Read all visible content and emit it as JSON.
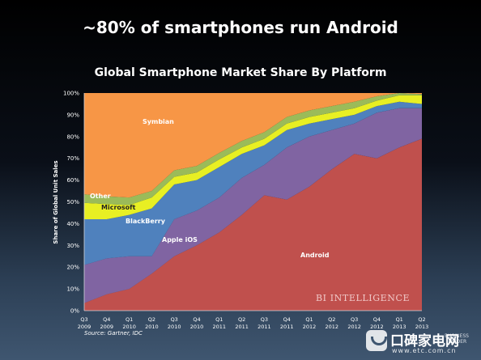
{
  "slide": {
    "title": "~80% of smartphones run Android",
    "source": "Source: Gartner, IDC",
    "watermark_bi": "BI INTELLIGENCE",
    "watermark_bi_small": "BUSINESS INSIDER",
    "watermark_site_name": "口碑家电网",
    "watermark_site_url": "www.etc.com.cn"
  },
  "chart_data": {
    "type": "area",
    "stacked": true,
    "title": "Global Smartphone Market Share By Platform",
    "xlabel": "",
    "ylabel": "Share of Global Unit Sales",
    "ylim": [
      0,
      100
    ],
    "y_ticks": [
      "0%",
      "10%",
      "20%",
      "30%",
      "40%",
      "50%",
      "60%",
      "70%",
      "80%",
      "90%",
      "100%"
    ],
    "categories": [
      "Q3 2009",
      "Q4 2009",
      "Q1 2010",
      "Q2 2010",
      "Q3 2010",
      "Q4 2010",
      "Q1 2011",
      "Q2 2011",
      "Q3 2011",
      "Q4 2011",
      "Q1 2012",
      "Q2 2012",
      "Q3 2012",
      "Q4 2012",
      "Q1 2013",
      "Q2 2013"
    ],
    "category_lines": [
      [
        "Q3",
        "2009"
      ],
      [
        "Q4",
        "2009"
      ],
      [
        "Q1",
        "2010"
      ],
      [
        "Q2",
        "2010"
      ],
      [
        "Q3",
        "2010"
      ],
      [
        "Q4",
        "2010"
      ],
      [
        "Q1",
        "2011"
      ],
      [
        "Q2",
        "2011"
      ],
      [
        "Q3",
        "2011"
      ],
      [
        "Q4",
        "2011"
      ],
      [
        "Q1",
        "2012"
      ],
      [
        "Q2",
        "2012"
      ],
      [
        "Q3",
        "2012"
      ],
      [
        "Q4",
        "2012"
      ],
      [
        "Q1",
        "2013"
      ],
      [
        "Q2",
        "2013"
      ]
    ],
    "series": [
      {
        "name": "Android",
        "color": "#c0504d",
        "values": [
          3.5,
          7.5,
          10,
          17,
          25,
          30,
          36,
          44,
          53,
          51,
          57,
          65,
          72,
          70,
          75,
          79
        ]
      },
      {
        "name": "Apple iOS",
        "color": "#8064a2",
        "values": [
          17.5,
          16.5,
          15,
          8,
          17,
          16,
          16,
          17,
          14,
          24,
          23,
          18,
          14,
          21,
          18,
          14
        ]
      },
      {
        "name": "BlackBerry",
        "color": "#4f81bd",
        "values": [
          21,
          18,
          19,
          22,
          16,
          14,
          14,
          11,
          9,
          8,
          6,
          5,
          4,
          3,
          3,
          2
        ]
      },
      {
        "name": "Microsoft",
        "color": "#e8ef23",
        "values": [
          7.5,
          7,
          4.5,
          5,
          3.5,
          3.5,
          3.5,
          3,
          3,
          3,
          3,
          3,
          3,
          2.5,
          3,
          4
        ]
      },
      {
        "name": "Other",
        "color": "#9bbb59",
        "values": [
          4,
          3.5,
          3.5,
          3,
          3,
          3,
          3,
          3,
          3,
          3,
          3,
          3,
          3,
          2,
          1,
          0.5
        ]
      },
      {
        "name": "Symbian",
        "color": "#f79646",
        "values": [
          46.5,
          47.5,
          48,
          45,
          35.5,
          33.5,
          27.5,
          22,
          18,
          11,
          8,
          6,
          4,
          1.5,
          0,
          0.5
        ]
      }
    ],
    "grid": false
  }
}
